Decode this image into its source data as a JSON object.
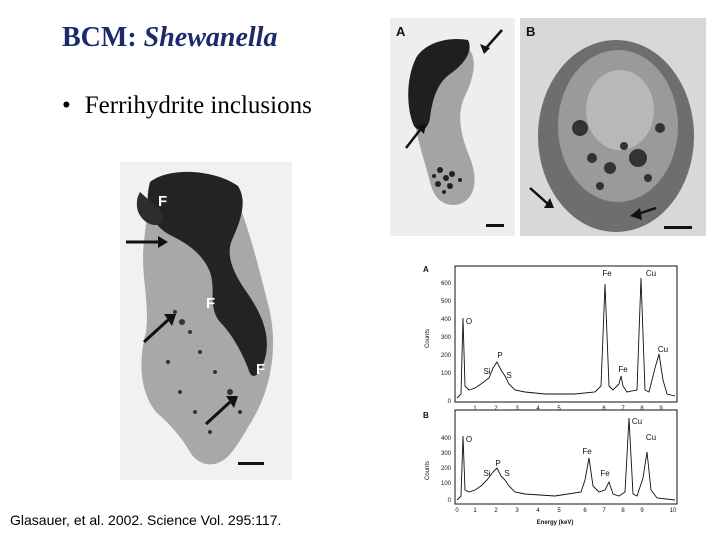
{
  "slide": {
    "title_prefix": "BCM: ",
    "title_italic": "Shewanella",
    "bullet_mark": "•",
    "bullet": "Ferrihydrite inclusions",
    "citation": "Glasauer, et al. 2002. Science Vol. 295:117."
  },
  "tem_left": {
    "labels": [
      "F",
      "F",
      "F"
    ]
  },
  "tem_a": {
    "label": "A"
  },
  "tem_b": {
    "label": "B"
  },
  "spectra": {
    "panel_a": {
      "letter": "A",
      "ylabel": "Counts",
      "yticks": [
        "600",
        "500",
        "400",
        "300",
        "200",
        "100",
        "0"
      ],
      "xticks": [
        "1",
        "2",
        "3",
        "4",
        "5",
        "6",
        "7",
        "8",
        "9"
      ],
      "peaks": [
        "O",
        "P",
        "Si",
        "S",
        "Fe",
        "Fe",
        "Cu",
        "Cu"
      ]
    },
    "panel_b": {
      "letter": "B",
      "ylabel": "Counts",
      "yticks": [
        "400",
        "300",
        "200",
        "100",
        "0"
      ],
      "xticks": [
        "0",
        "1",
        "2",
        "3",
        "4",
        "5",
        "6",
        "7",
        "8",
        "9",
        "10"
      ],
      "peaks": [
        "O",
        "P",
        "Si",
        "S",
        "Fe",
        "Fe",
        "Cu",
        "Cu"
      ],
      "xlabel": "Energy (keV)"
    }
  },
  "colors": {
    "title": "#1b2a6b"
  }
}
